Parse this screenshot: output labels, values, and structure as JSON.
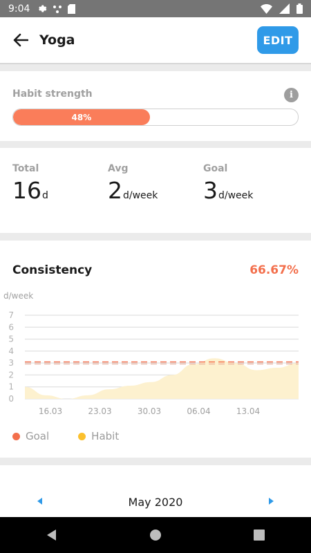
{
  "status_bar": {
    "time": "9:04"
  },
  "app_bar": {
    "title": "Yoga",
    "edit_label": "EDIT"
  },
  "habit_strength": {
    "label": "Habit strength",
    "percent_label": "48%",
    "value": 0.48
  },
  "stats": [
    {
      "label": "Total",
      "value": "16",
      "unit": "d"
    },
    {
      "label": "Avg",
      "value": "2",
      "unit": "d/week"
    },
    {
      "label": "Goal",
      "value": "3",
      "unit": "d/week"
    }
  ],
  "consistency": {
    "title": "Consistency",
    "percent": "66.67%",
    "legend": {
      "goal": "Goal",
      "habit": "Habit"
    }
  },
  "colors": {
    "accent": "#2f9ae8",
    "goal": "#f36f4c",
    "habit": "#fbc02d",
    "habit_fill": "#fdf1cf"
  },
  "calendar": {
    "month": "May 2020"
  },
  "chart_data": {
    "type": "area",
    "ylabel": "d/week",
    "ylim": [
      0,
      7
    ],
    "yticks": [
      "0",
      "1",
      "2",
      "3",
      "4",
      "5",
      "6",
      "7"
    ],
    "x_ticks": [
      "16.03",
      "23.03",
      "30.03",
      "06.04",
      "13.04"
    ],
    "series": [
      {
        "name": "Habit",
        "values": [
          1.0,
          0.3,
          0.0,
          0.3,
          0.8,
          1.1,
          1.4,
          2.0,
          2.9,
          3.4,
          3.0,
          2.4,
          2.6,
          3.0
        ]
      },
      {
        "name": "Goal",
        "values": [
          3,
          3
        ]
      }
    ]
  }
}
